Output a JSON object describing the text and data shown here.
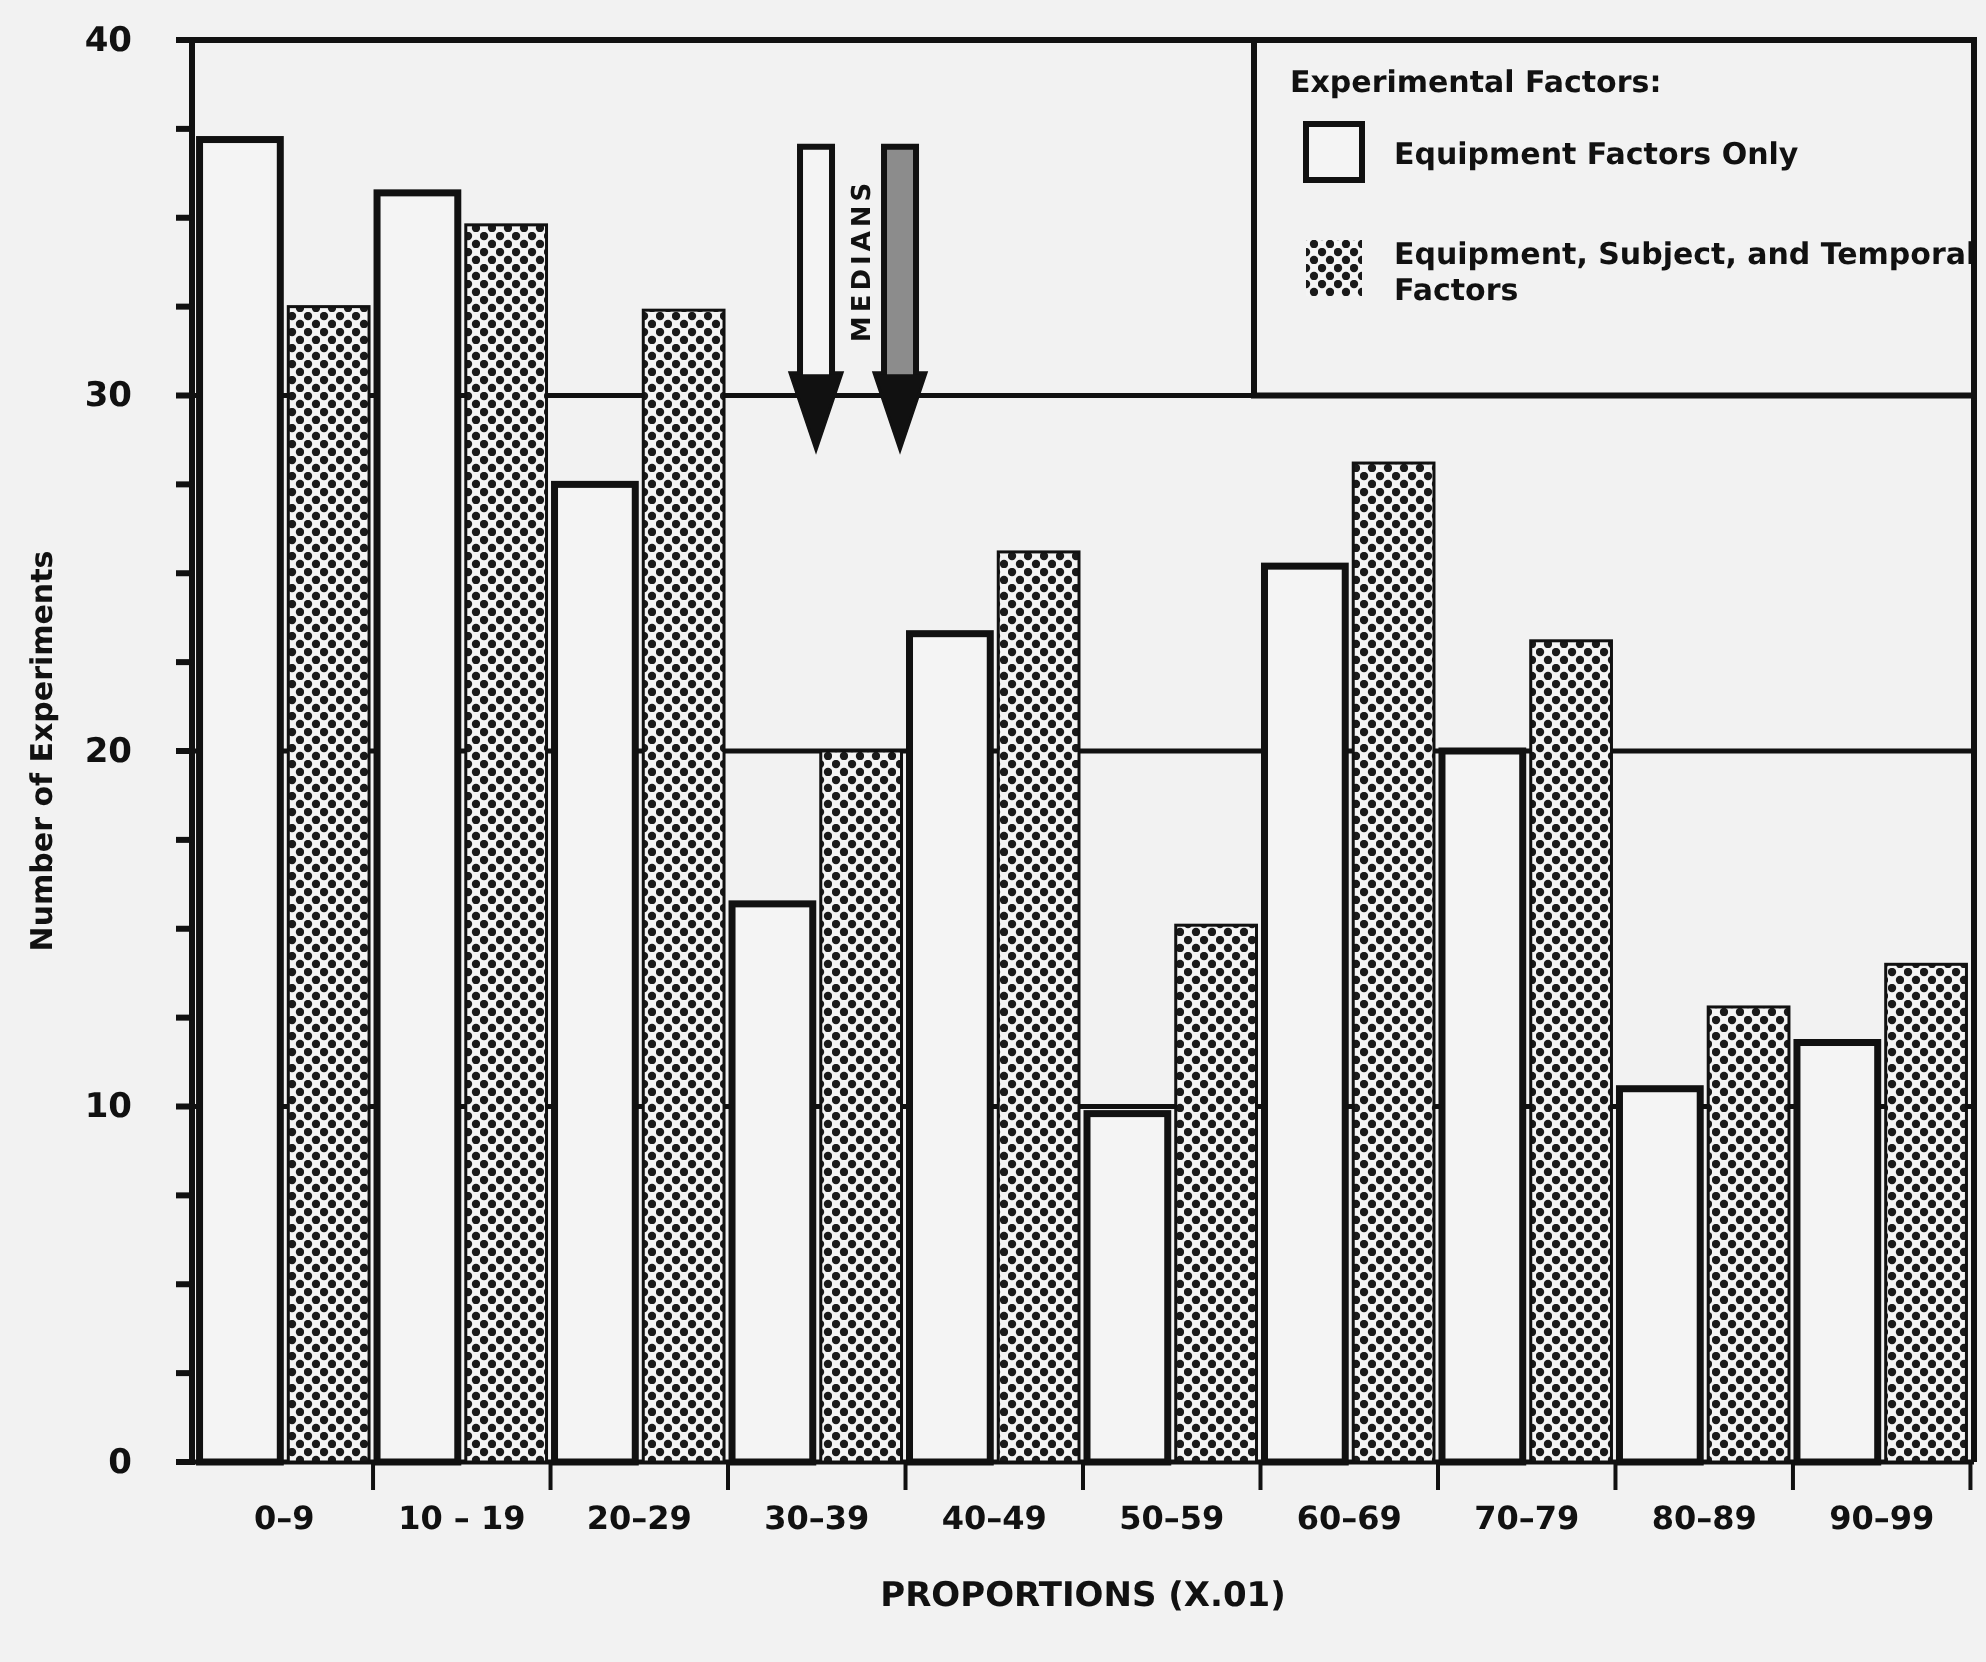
{
  "chart_data": {
    "type": "bar",
    "xlabel": "PROPORTIONS (X.01)",
    "ylabel": "Number of Experiments",
    "legend_title": "Experimental Factors:",
    "legend": "top right",
    "grid": "y",
    "categories": [
      "0–9",
      "10 – 19",
      "20–29",
      "30–39",
      "40–49",
      "50–59",
      "60–69",
      "70–79",
      "80–89",
      "90–99"
    ],
    "series": [
      {
        "name": "Equipment Factors Only",
        "color": "#f4f4f4",
        "values": [
          37.2,
          35.7,
          27.5,
          15.7,
          23.3,
          9.8,
          25.2,
          20,
          10.5,
          11.8
        ]
      },
      {
        "name": "Equipment, Subject, and Temporal Factors",
        "color": "#1a1a1a",
        "values": [
          32.5,
          34.8,
          32.4,
          20,
          25.6,
          15.1,
          28.1,
          23.1,
          12.8,
          14
        ]
      }
    ],
    "ylim": [
      0,
      40
    ],
    "yticks": [
      0,
      {
        "value": 2.5,
        "label": null
      },
      {
        "value": 5,
        "label": null
      },
      {
        "value": 7.5,
        "label": null
      },
      10,
      {
        "value": 12.5,
        "label": null
      },
      {
        "value": 15,
        "label": null
      },
      {
        "value": 17.5,
        "label": null
      },
      20,
      {
        "value": 22.5,
        "label": null
      },
      {
        "value": 25,
        "label": null
      },
      {
        "value": 27.5,
        "label": null
      },
      30,
      {
        "value": 32.5,
        "label": null
      },
      {
        "value": 35,
        "label": null
      },
      {
        "value": 37.5,
        "label": null
      },
      40
    ],
    "annotations": [
      "MEDIANS"
    ]
  }
}
